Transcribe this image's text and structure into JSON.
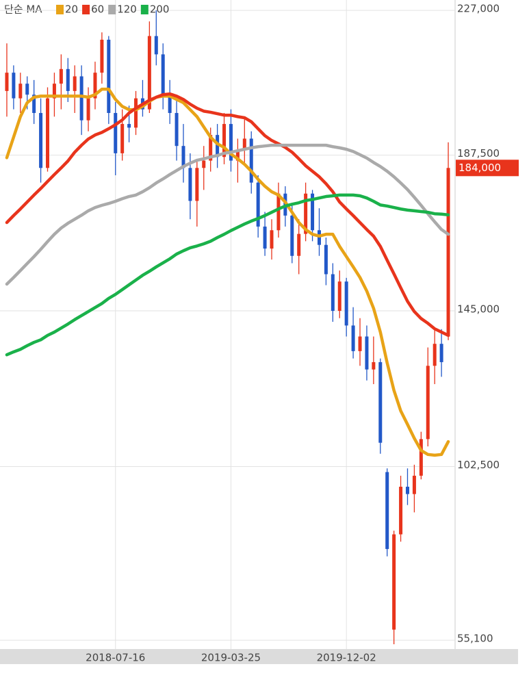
{
  "chart_data": {
    "type": "candlestick",
    "legend_title": "단순 MA",
    "annotation": "184,000",
    "up_color": "#e8341c",
    "down_color": "#2258c8",
    "categories": [
      null,
      null,
      null,
      null,
      null,
      null,
      null,
      null,
      null,
      null,
      null,
      null,
      null,
      null,
      null,
      null,
      "2018-07-16",
      null,
      null,
      null,
      null,
      null,
      null,
      null,
      null,
      null,
      null,
      null,
      null,
      null,
      null,
      null,
      null,
      "2019-03-25",
      null,
      null,
      null,
      null,
      null,
      null,
      null,
      null,
      null,
      null,
      null,
      null,
      null,
      null,
      null,
      null,
      "2019-12-02",
      null,
      null,
      null,
      null,
      null,
      null,
      null,
      null,
      null,
      null,
      null,
      null,
      null,
      null,
      null
    ],
    "open": [
      205000,
      210000,
      203000,
      207000,
      204000,
      199000,
      184000,
      203000,
      207000,
      211000,
      205000,
      209000,
      197000,
      203000,
      210000,
      219000,
      199000,
      188000,
      196000,
      195000,
      203000,
      200000,
      220000,
      215000,
      204000,
      199000,
      190000,
      184000,
      175000,
      184000,
      186000,
      193000,
      187000,
      196000,
      186000,
      189000,
      192000,
      180000,
      168000,
      162000,
      167000,
      177000,
      171000,
      160000,
      166000,
      177000,
      167000,
      163000,
      155000,
      145000,
      153000,
      141000,
      134000,
      138000,
      129000,
      131000,
      101000,
      58000,
      84000,
      97000,
      95000,
      100000,
      110000,
      130000,
      136000,
      138000
    ],
    "high": [
      218000,
      212000,
      210000,
      209000,
      208000,
      203000,
      206000,
      210000,
      215000,
      214000,
      212000,
      212000,
      206000,
      213000,
      221000,
      220000,
      202000,
      200000,
      201000,
      205000,
      208000,
      224000,
      227000,
      218000,
      208000,
      203000,
      196000,
      188000,
      186000,
      190000,
      195000,
      196000,
      199000,
      200000,
      192000,
      198000,
      194000,
      182000,
      172000,
      170000,
      180000,
      179000,
      174000,
      170000,
      180000,
      178000,
      173000,
      165000,
      158000,
      156000,
      154000,
      146000,
      143000,
      141000,
      138000,
      132000,
      102000,
      85000,
      100000,
      102000,
      103000,
      112000,
      135000,
      140000,
      140000,
      191000
    ],
    "low": [
      198000,
      200000,
      199000,
      200000,
      196000,
      180000,
      183000,
      198000,
      200000,
      202000,
      199000,
      193000,
      194000,
      200000,
      207000,
      196000,
      182000,
      186000,
      191000,
      193000,
      198000,
      199000,
      212000,
      200000,
      196000,
      186000,
      180000,
      170000,
      168000,
      178000,
      183000,
      184000,
      185000,
      183000,
      180000,
      185000,
      177000,
      165000,
      160000,
      159000,
      165000,
      168000,
      158000,
      155000,
      164000,
      164000,
      160000,
      152000,
      142000,
      143000,
      138000,
      132000,
      130000,
      126000,
      125000,
      106000,
      78000,
      54000,
      82000,
      92000,
      90000,
      99000,
      108000,
      125000,
      127000,
      137000
    ],
    "close": [
      210000,
      203000,
      207000,
      204000,
      199000,
      184000,
      203000,
      207000,
      211000,
      205000,
      209000,
      197000,
      203000,
      210000,
      219000,
      199000,
      188000,
      196000,
      195000,
      203000,
      200000,
      220000,
      215000,
      204000,
      199000,
      190000,
      184000,
      175000,
      184000,
      186000,
      193000,
      187000,
      196000,
      186000,
      189000,
      192000,
      180000,
      168000,
      162000,
      167000,
      177000,
      171000,
      160000,
      166000,
      177000,
      167000,
      163000,
      155000,
      145000,
      153000,
      141000,
      134000,
      138000,
      129000,
      131000,
      109000,
      80000,
      84000,
      97000,
      95000,
      100000,
      110000,
      130000,
      136000,
      131000,
      184000
    ],
    "series": [
      {
        "name": "20",
        "color": "#e8a317",
        "values": [
          186800,
          192400,
          198000,
          201800,
          203300,
          203600,
          203600,
          203600,
          203600,
          203600,
          203600,
          203600,
          203300,
          204000,
          205500,
          205500,
          202700,
          200800,
          199900,
          199900,
          200800,
          202200,
          203300,
          203600,
          203600,
          202700,
          201800,
          199900,
          198000,
          195200,
          192400,
          190600,
          189600,
          187800,
          186500,
          185000,
          183100,
          180900,
          179000,
          177500,
          176600,
          174700,
          171900,
          169100,
          167200,
          165900,
          165400,
          165900,
          165900,
          162600,
          159800,
          157000,
          154100,
          150400,
          145700,
          139200,
          130800,
          123300,
          117700,
          114000,
          110200,
          106900,
          105800,
          105600,
          105800,
          109300
        ]
      },
      {
        "name": "60",
        "color": "#e8341c",
        "values": [
          169100,
          171000,
          172800,
          174700,
          176600,
          178400,
          180300,
          182200,
          184000,
          185900,
          188300,
          190200,
          191900,
          193000,
          193700,
          194700,
          195800,
          197100,
          199000,
          200300,
          201400,
          202500,
          203300,
          204000,
          204200,
          203600,
          202700,
          201400,
          200300,
          199500,
          199200,
          198800,
          198400,
          198400,
          198000,
          197700,
          196600,
          194700,
          192800,
          191500,
          190600,
          189600,
          188300,
          186500,
          184600,
          183100,
          181600,
          179700,
          177500,
          174700,
          172800,
          171000,
          169100,
          167200,
          165400,
          162600,
          158800,
          155100,
          151300,
          147600,
          144800,
          142900,
          141600,
          140100,
          139200,
          138300
        ]
      },
      {
        "name": "120",
        "color": "#aaaaaa",
        "values": [
          152300,
          154100,
          156000,
          157900,
          159800,
          161800,
          163900,
          165900,
          167600,
          168900,
          170000,
          171100,
          172300,
          173200,
          173800,
          174300,
          174900,
          175600,
          176200,
          176600,
          177500,
          178600,
          179900,
          181000,
          182200,
          183300,
          184400,
          185300,
          186100,
          186500,
          187000,
          187400,
          188000,
          188300,
          188700,
          189100,
          189500,
          189800,
          190000,
          190200,
          190200,
          190200,
          190200,
          190200,
          190200,
          190200,
          190200,
          190200,
          189800,
          189500,
          189100,
          188500,
          187600,
          186700,
          185500,
          184400,
          183100,
          181600,
          179900,
          178100,
          176000,
          173800,
          171500,
          169300,
          167200,
          165900
        ]
      },
      {
        "name": "200",
        "color": "#1ab14a",
        "values": [
          133000,
          133800,
          134500,
          135500,
          136400,
          137100,
          138300,
          139200,
          140300,
          141400,
          142600,
          143700,
          144800,
          145900,
          147000,
          148400,
          149500,
          150800,
          152100,
          153400,
          154700,
          155800,
          157000,
          158100,
          159200,
          160500,
          161400,
          162200,
          162700,
          163300,
          164000,
          165000,
          165900,
          166900,
          167800,
          168700,
          169500,
          170200,
          171000,
          171900,
          172800,
          173600,
          174100,
          174500,
          175100,
          175400,
          175800,
          176200,
          176400,
          176600,
          176600,
          176600,
          176400,
          175800,
          174900,
          173900,
          173600,
          173200,
          172800,
          172500,
          172300,
          172100,
          171900,
          171500,
          171400,
          171200
        ]
      }
    ],
    "ylim": [
      52700,
      228900
    ],
    "yticks": [
      {
        "value": 55100,
        "label": "55,100"
      },
      {
        "value": 102500,
        "label": "102,500"
      },
      {
        "value": 145000,
        "label": "145,000"
      },
      {
        "value": 187500,
        "label": "187,500"
      },
      {
        "value": 227000,
        "label": "227,000"
      }
    ],
    "grid": true
  }
}
